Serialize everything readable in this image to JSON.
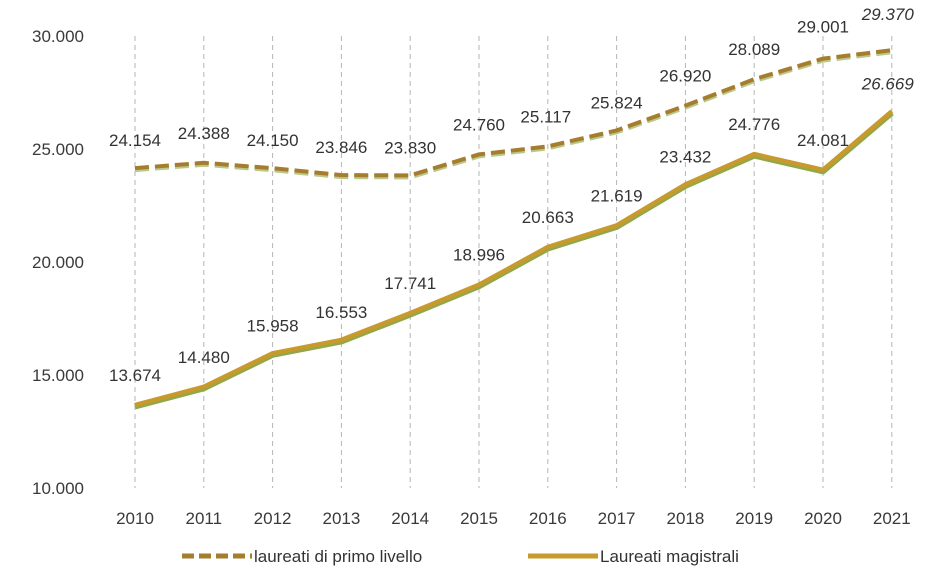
{
  "chart_data": {
    "type": "line",
    "categories": [
      "2010",
      "2011",
      "2012",
      "2013",
      "2014",
      "2015",
      "2016",
      "2017",
      "2018",
      "2019",
      "2020",
      "2021"
    ],
    "ylim": [
      10000,
      30000
    ],
    "yticks": [
      {
        "value": 10000,
        "label": "10.000"
      },
      {
        "value": 15000,
        "label": "15.000"
      },
      {
        "value": 20000,
        "label": "20.000"
      },
      {
        "value": 25000,
        "label": "25.000"
      },
      {
        "value": 30000,
        "label": "30.000"
      }
    ],
    "grid": "vertical-dashed",
    "legend_position": "bottom",
    "series": [
      {
        "name": "laureati di primo livello",
        "style": "dashed",
        "color": "#a67c2e",
        "color_secondary": "#b8c98a",
        "values": [
          24154,
          24388,
          24150,
          23846,
          23830,
          24760,
          25117,
          25824,
          26920,
          28089,
          29001,
          29370
        ],
        "labels": [
          "24.154",
          "24.388",
          "24.150",
          "23.846",
          "23.830",
          "24.760",
          "25.117",
          "25.824",
          "26.920",
          "28.089",
          "29.001",
          "29.370"
        ]
      },
      {
        "name": "Laureati magistrali",
        "style": "solid",
        "color": "#c79a2e",
        "color_secondary": "#8ea84a",
        "values": [
          13674,
          14480,
          15958,
          16553,
          17741,
          18996,
          20663,
          21619,
          23432,
          24776,
          24081,
          26669
        ],
        "labels": [
          "13.674",
          "14.480",
          "15.958",
          "16.553",
          "17.741",
          "18.996",
          "20.663",
          "21.619",
          "23.432",
          "24.776",
          "24.081",
          "26.669"
        ]
      }
    ]
  }
}
